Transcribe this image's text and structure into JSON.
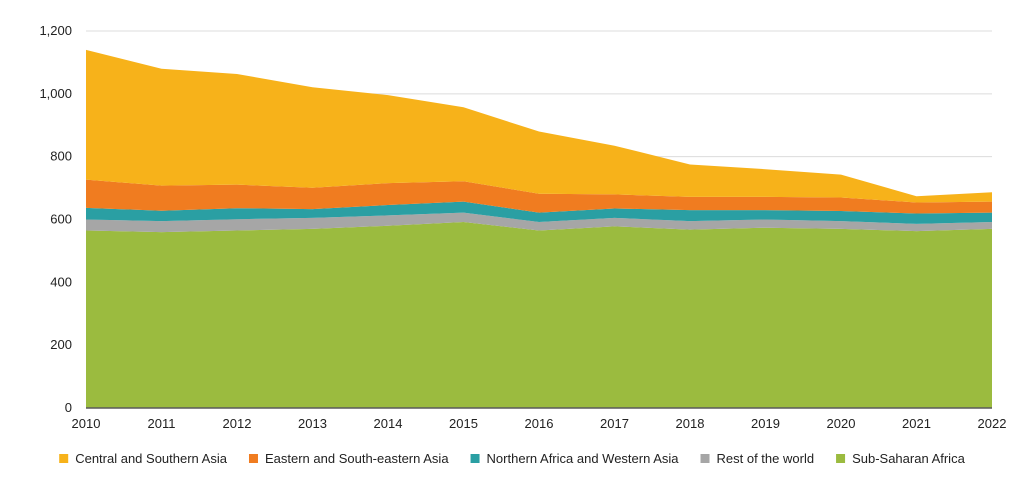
{
  "chart_data": {
    "type": "area",
    "stacked": true,
    "title": "",
    "xlabel": "",
    "ylabel": "",
    "x": [
      "2010",
      "2011",
      "2012",
      "2013",
      "2014",
      "2015",
      "2016",
      "2017",
      "2018",
      "2019",
      "2020",
      "2021",
      "2022"
    ],
    "ylim": [
      0,
      1200
    ],
    "yticks": [
      "0",
      "200",
      "400",
      "600",
      "800",
      "1,000",
      "1,200"
    ],
    "grid": "horizontal",
    "legend_position": "bottom",
    "series": [
      {
        "name": "Sub-Saharan Africa",
        "color": "#9bbb3f",
        "values": [
          565,
          560,
          565,
          570,
          580,
          592,
          565,
          578,
          568,
          574,
          570,
          563,
          570
        ]
      },
      {
        "name": "Rest of the world",
        "color": "#a6a6a6",
        "values": [
          35,
          35,
          36,
          35,
          33,
          30,
          27,
          27,
          27,
          26,
          25,
          23,
          22
        ]
      },
      {
        "name": "Northern Africa and Western Asia",
        "color": "#2a9fa3",
        "values": [
          37,
          33,
          35,
          28,
          33,
          35,
          30,
          30,
          35,
          30,
          32,
          33,
          30
        ]
      },
      {
        "name": "Eastern and South-eastern Asia",
        "color": "#f07c20",
        "values": [
          90,
          80,
          75,
          68,
          70,
          65,
          60,
          45,
          42,
          42,
          43,
          35,
          35
        ]
      },
      {
        "name": "Central and Southern Asia",
        "color": "#f7b21a",
        "values": [
          413,
          372,
          352,
          320,
          280,
          235,
          198,
          155,
          103,
          88,
          73,
          20,
          30
        ]
      }
    ],
    "legend_order": [
      "Central and Southern Asia",
      "Eastern and South-eastern Asia",
      "Northern Africa and Western Asia",
      "Rest of the world",
      "Sub-Saharan Africa"
    ]
  }
}
